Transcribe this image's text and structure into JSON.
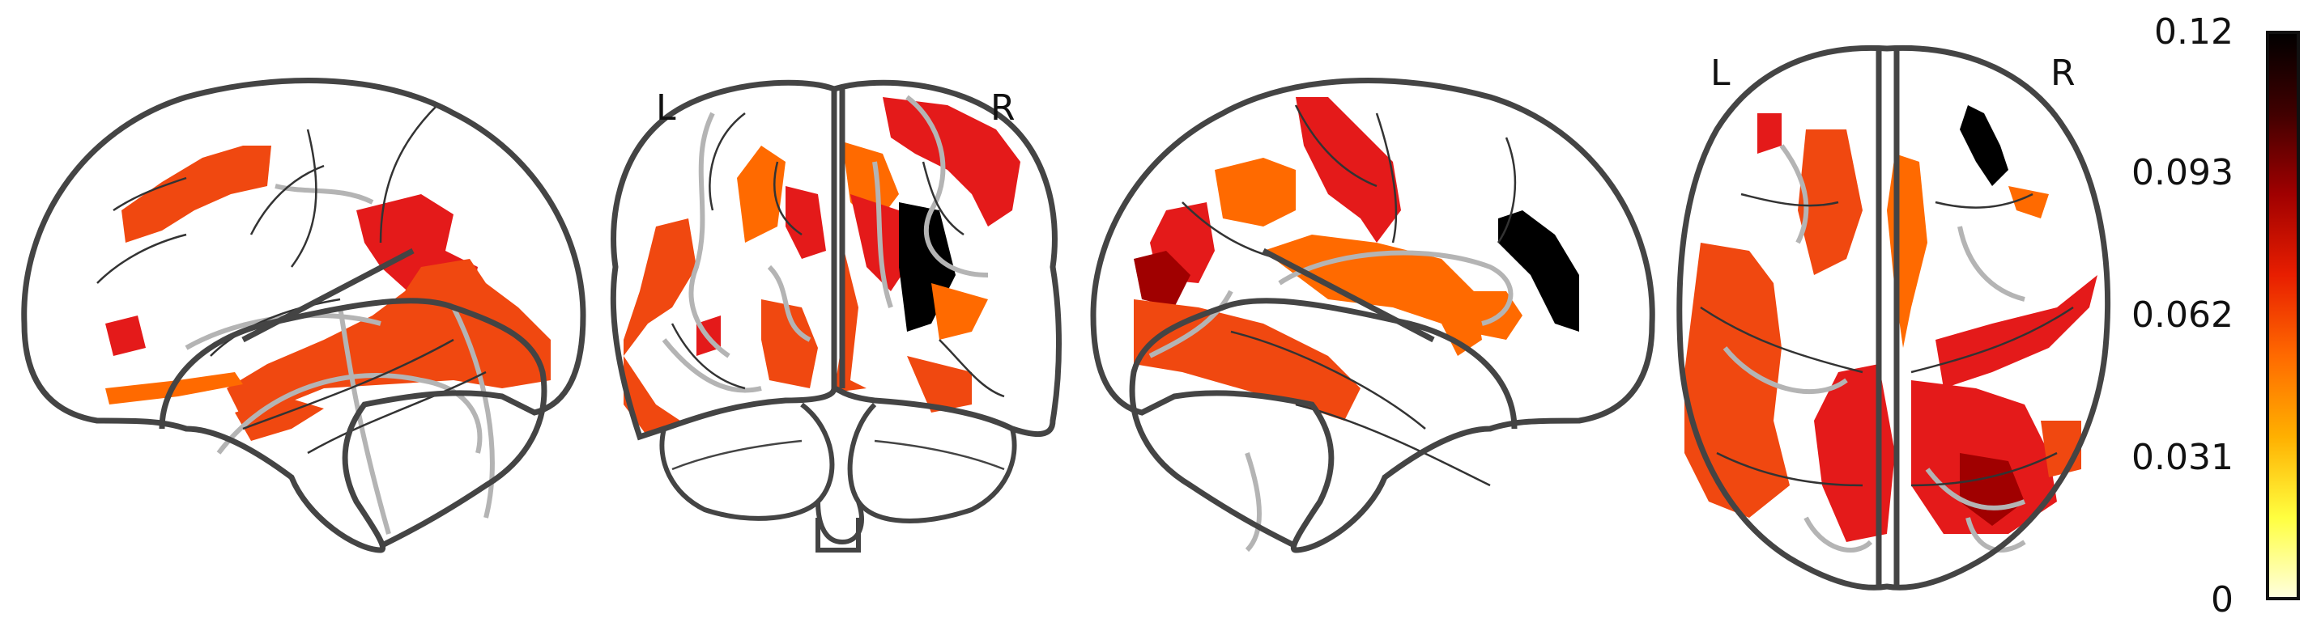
{
  "coronal_labels": {
    "left": "L",
    "right": "R"
  },
  "axial_labels": {
    "left": "L",
    "right": "R"
  },
  "colorbar": {
    "ticks": [
      "0.12",
      "0.093",
      "0.062",
      "0.031",
      "0"
    ],
    "colormap": [
      "#ffffe0",
      "#ffff40",
      "#ffb000",
      "#ff6a00",
      "#e81e00",
      "#a00000",
      "#400000",
      "#000000"
    ]
  },
  "colors": {
    "outline": "#444444",
    "guide_lines": "#b4b4b4",
    "fill_low": "#ff6a00",
    "fill_mid": "#f04810",
    "fill_high": "#e41a1a",
    "fill_peak": "#8a0000",
    "fill_max": "#000000"
  }
}
